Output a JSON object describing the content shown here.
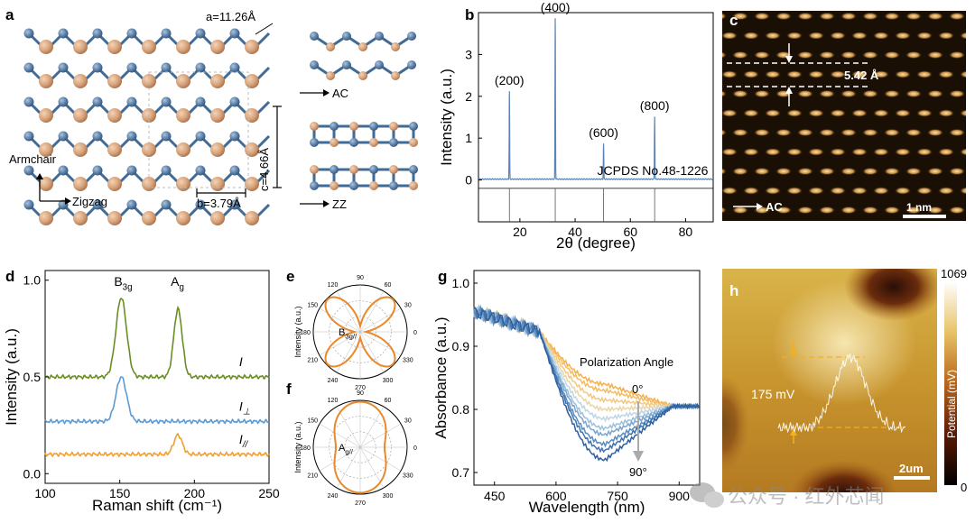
{
  "panels": {
    "a": {
      "label": "a",
      "lattice_a": "a=11.26Å",
      "lattice_b": "b=3.79Å",
      "lattice_c": "c=4.66Å",
      "dir_armchair": "Armchair",
      "dir_zigzag": "Zigzag",
      "view_ac": "AC",
      "view_zz": "ZZ",
      "colors": {
        "atom_blue": "#5b7fa6",
        "atom_tan": "#d7a27a",
        "bond": "#3f6b96"
      }
    },
    "b": {
      "label": "b"
    },
    "c": {
      "label": "c",
      "spacing": "5.42 Å",
      "direction": "AC",
      "scalebar": "1 nm"
    },
    "d": {
      "label": "d"
    },
    "e": {
      "label": "e"
    },
    "f": {
      "label": "f"
    },
    "g": {
      "label": "g",
      "legend": "Polarization Angle",
      "angle_start": "0°",
      "angle_end": "90°"
    },
    "h": {
      "label": "h",
      "annotation": "175 mV",
      "scalebar": "2um",
      "colorbar_max": "1069",
      "colorbar_min": "0",
      "colorbar_label": "Potential (mV)"
    }
  },
  "watermark": "公众号 · 红外芯闻",
  "chart_data": [
    {
      "id": "b",
      "type": "line",
      "xlabel": "2θ (degree)",
      "ylabel": "Intensity (a.u.)",
      "xlim": [
        5,
        90
      ],
      "ylim": [
        -1,
        4
      ],
      "xticks": [
        20,
        40,
        60,
        80
      ],
      "yticks": [
        0,
        1,
        2,
        3
      ],
      "peaks": [
        {
          "x": 16.2,
          "y": 2.1,
          "label": "(200)"
        },
        {
          "x": 32.8,
          "y": 3.85,
          "label": "(400)"
        },
        {
          "x": 50.3,
          "y": 0.85,
          "label": "(600)"
        },
        {
          "x": 68.8,
          "y": 1.5,
          "label": "(800)"
        }
      ],
      "reference_lines": [
        16.2,
        32.8,
        50.3,
        68.8
      ],
      "reference_label": "JCPDS No.48-1226",
      "color": "#5b84b1"
    },
    {
      "id": "d",
      "type": "line",
      "xlabel": "Raman shift (cm⁻¹)",
      "ylabel": "Intensity (a.u.)",
      "xlim": [
        100,
        250
      ],
      "ylim": [
        -0.05,
        1.05
      ],
      "xticks": [
        100,
        150,
        200,
        250
      ],
      "yticks": [
        0.0,
        0.5,
        1.0
      ],
      "peak_labels": [
        {
          "x": 151,
          "text": "B",
          "sub": "3g"
        },
        {
          "x": 189,
          "text": "A",
          "sub": "g"
        }
      ],
      "series": [
        {
          "name": "I",
          "sub": "",
          "color": "#6b8e23",
          "baseline": 0.5,
          "peaks": [
            [
              151,
              0.41,
              5
            ],
            [
              189,
              0.35,
              4
            ]
          ]
        },
        {
          "name": "I",
          "sub": "⊥",
          "color": "#5b9bd5",
          "baseline": 0.27,
          "peaks": [
            [
              151,
              0.23,
              5
            ]
          ]
        },
        {
          "name": "I",
          "sub": "//",
          "color": "#f0a030",
          "baseline": 0.1,
          "peaks": [
            [
              189,
              0.1,
              4
            ]
          ]
        }
      ]
    },
    {
      "id": "e",
      "type": "polar",
      "ylabel": "Intensity (a.u.)",
      "label": "B",
      "label_sub": "3g",
      "label_suffix": "//",
      "angles": [
        0,
        30,
        60,
        90,
        120,
        150,
        180,
        210,
        240,
        270,
        300,
        330
      ],
      "shape": "four-lobe",
      "color": "#e8892b"
    },
    {
      "id": "f",
      "type": "polar",
      "ylabel": "Intensity (a.u.)",
      "label": "A",
      "label_sub": "g",
      "label_suffix": "//",
      "angles": [
        0,
        30,
        60,
        90,
        120,
        150,
        180,
        210,
        240,
        270,
        300,
        330
      ],
      "shape": "peanut",
      "color": "#e8892b"
    },
    {
      "id": "g",
      "type": "line",
      "xlabel": "Wavelength (nm)",
      "ylabel": "Absorbance (a.u.)",
      "xlim": [
        400,
        950
      ],
      "ylim": [
        0.68,
        1.02
      ],
      "xticks": [
        450,
        600,
        750,
        900
      ],
      "yticks": [
        0.7,
        0.8,
        0.9,
        1.0
      ],
      "n_series": 10,
      "series_colors": [
        "#2e5f9e",
        "#3f73b0",
        "#5a8cc0",
        "#7aa6cf",
        "#9cbfdc",
        "#c0d6e6",
        "#e9d6a8",
        "#f2c980",
        "#f5bb62",
        "#f4b04c"
      ],
      "min_values": [
        0.72,
        0.735,
        0.745,
        0.76,
        0.77,
        0.785,
        0.8,
        0.815,
        0.83,
        0.84
      ]
    },
    {
      "id": "h",
      "type": "line",
      "note": "KPFM line profile over potential map",
      "profile_low_mV": 0,
      "profile_high_mV": 175
    }
  ]
}
